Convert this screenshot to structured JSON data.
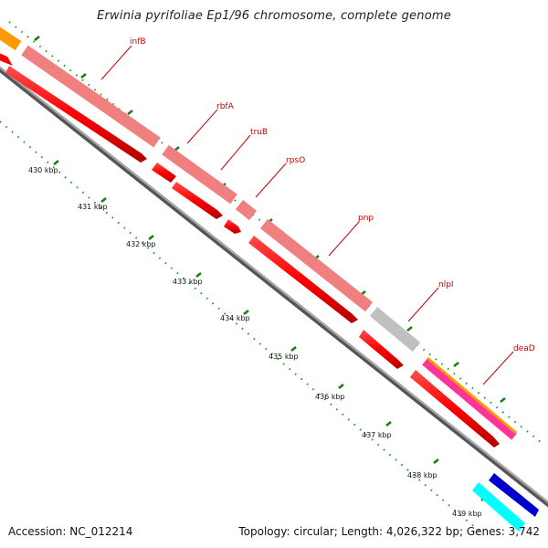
{
  "title": "Erwinia pyrifoliae Ep1/96 chromosome, complete genome",
  "footer": {
    "accession": "Accession: NC_012214",
    "summary": "Topology: circular; Length: 4,026,322 bp; Genes: 3,742"
  },
  "kbp_labels": [
    "430 kbp",
    "431 kbp",
    "432 kbp",
    "433 kbp",
    "434 kbp",
    "435 kbp",
    "436 kbp",
    "437 kbp",
    "438 kbp",
    "439 kbp"
  ],
  "genes": [
    {
      "name": "infB",
      "color": "#ff0000",
      "label_color": "#f08080"
    },
    {
      "name": "rbfA",
      "color": "#ff0000",
      "label_color": "#f08080"
    },
    {
      "name": "truB",
      "color": "#ff0000",
      "label_color": "#f08080"
    },
    {
      "name": "rpsO",
      "color": "#ff0000",
      "label_color": "#f08080"
    },
    {
      "name": "pnp",
      "color": "#ff0000",
      "label_color": "#f08080"
    },
    {
      "name": "nlpI",
      "color": "#ff0000",
      "label_color": "#c0c0c0"
    },
    {
      "name": "deaD",
      "color": "#ff0000",
      "label_color": "#ff3399"
    }
  ],
  "colors": {
    "backbone": "#808080",
    "tick_major": "#1a7a1a",
    "tick_minor": "#1a9a1a",
    "gene_red": "#ff0000",
    "gene_pink": "#f08080",
    "gene_gray": "#c0c0c0",
    "gene_magenta": "#ff3399",
    "gene_orange": "#ff9900",
    "gene_blue": "#0000cc",
    "gene_cyan": "#00ffff",
    "label_red": "#cc0000"
  }
}
